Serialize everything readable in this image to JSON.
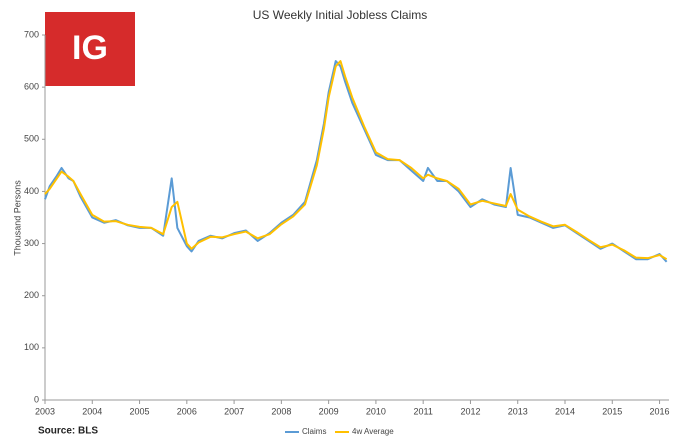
{
  "chart_data": {
    "type": "line",
    "title": "US Weekly Initial Jobless Claims",
    "logo": "IG",
    "source": "Source: BLS",
    "y_label": "Thousand Persons",
    "x": [
      2003.0,
      2003.1,
      2003.25,
      2003.35,
      2003.5,
      2003.6,
      2003.75,
      2004.0,
      2004.25,
      2004.5,
      2004.75,
      2005.0,
      2005.25,
      2005.5,
      2005.68,
      2005.8,
      2006.0,
      2006.1,
      2006.25,
      2006.5,
      2006.75,
      2007.0,
      2007.25,
      2007.5,
      2007.75,
      2008.0,
      2008.25,
      2008.5,
      2008.75,
      2008.9,
      2009.0,
      2009.15,
      2009.25,
      2009.35,
      2009.5,
      2009.75,
      2010.0,
      2010.25,
      2010.5,
      2010.75,
      2011.0,
      2011.1,
      2011.3,
      2011.5,
      2011.75,
      2012.0,
      2012.25,
      2012.5,
      2012.75,
      2012.85,
      2013.0,
      2013.25,
      2013.5,
      2013.75,
      2014.0,
      2014.25,
      2014.5,
      2014.75,
      2015.0,
      2015.25,
      2015.5,
      2015.75,
      2016.0,
      2016.15
    ],
    "series": [
      {
        "name": "Claims",
        "color": "#5b9bd5",
        "values": [
          385,
          410,
          430,
          445,
          425,
          420,
          390,
          350,
          340,
          345,
          335,
          330,
          330,
          315,
          425,
          330,
          295,
          285,
          305,
          315,
          310,
          320,
          325,
          305,
          320,
          340,
          355,
          380,
          460,
          530,
          590,
          650,
          640,
          610,
          570,
          520,
          470,
          460,
          460,
          440,
          420,
          445,
          420,
          420,
          400,
          370,
          385,
          375,
          370,
          445,
          355,
          350,
          340,
          330,
          335,
          320,
          305,
          290,
          300,
          285,
          270,
          270,
          280,
          265
        ]
      },
      {
        "name": "4w Average",
        "color": "#ffc000",
        "values": [
          395,
          405,
          425,
          438,
          428,
          420,
          395,
          355,
          342,
          343,
          336,
          332,
          330,
          318,
          370,
          380,
          300,
          290,
          302,
          313,
          312,
          318,
          323,
          310,
          318,
          337,
          352,
          375,
          450,
          520,
          580,
          640,
          650,
          620,
          580,
          525,
          475,
          462,
          460,
          445,
          425,
          432,
          425,
          420,
          405,
          375,
          382,
          377,
          372,
          395,
          365,
          352,
          342,
          333,
          336,
          322,
          307,
          293,
          298,
          287,
          273,
          272,
          278,
          270
        ]
      }
    ],
    "xlim": [
      2003,
      2016.2
    ],
    "xticks": [
      2003,
      2004,
      2005,
      2006,
      2007,
      2008,
      2009,
      2010,
      2011,
      2012,
      2013,
      2014,
      2015,
      2016
    ],
    "ylim": [
      0,
      700
    ],
    "yticks": [
      0,
      100,
      200,
      300,
      400,
      500,
      600,
      700
    ],
    "grid": false,
    "legend": "bottom"
  }
}
